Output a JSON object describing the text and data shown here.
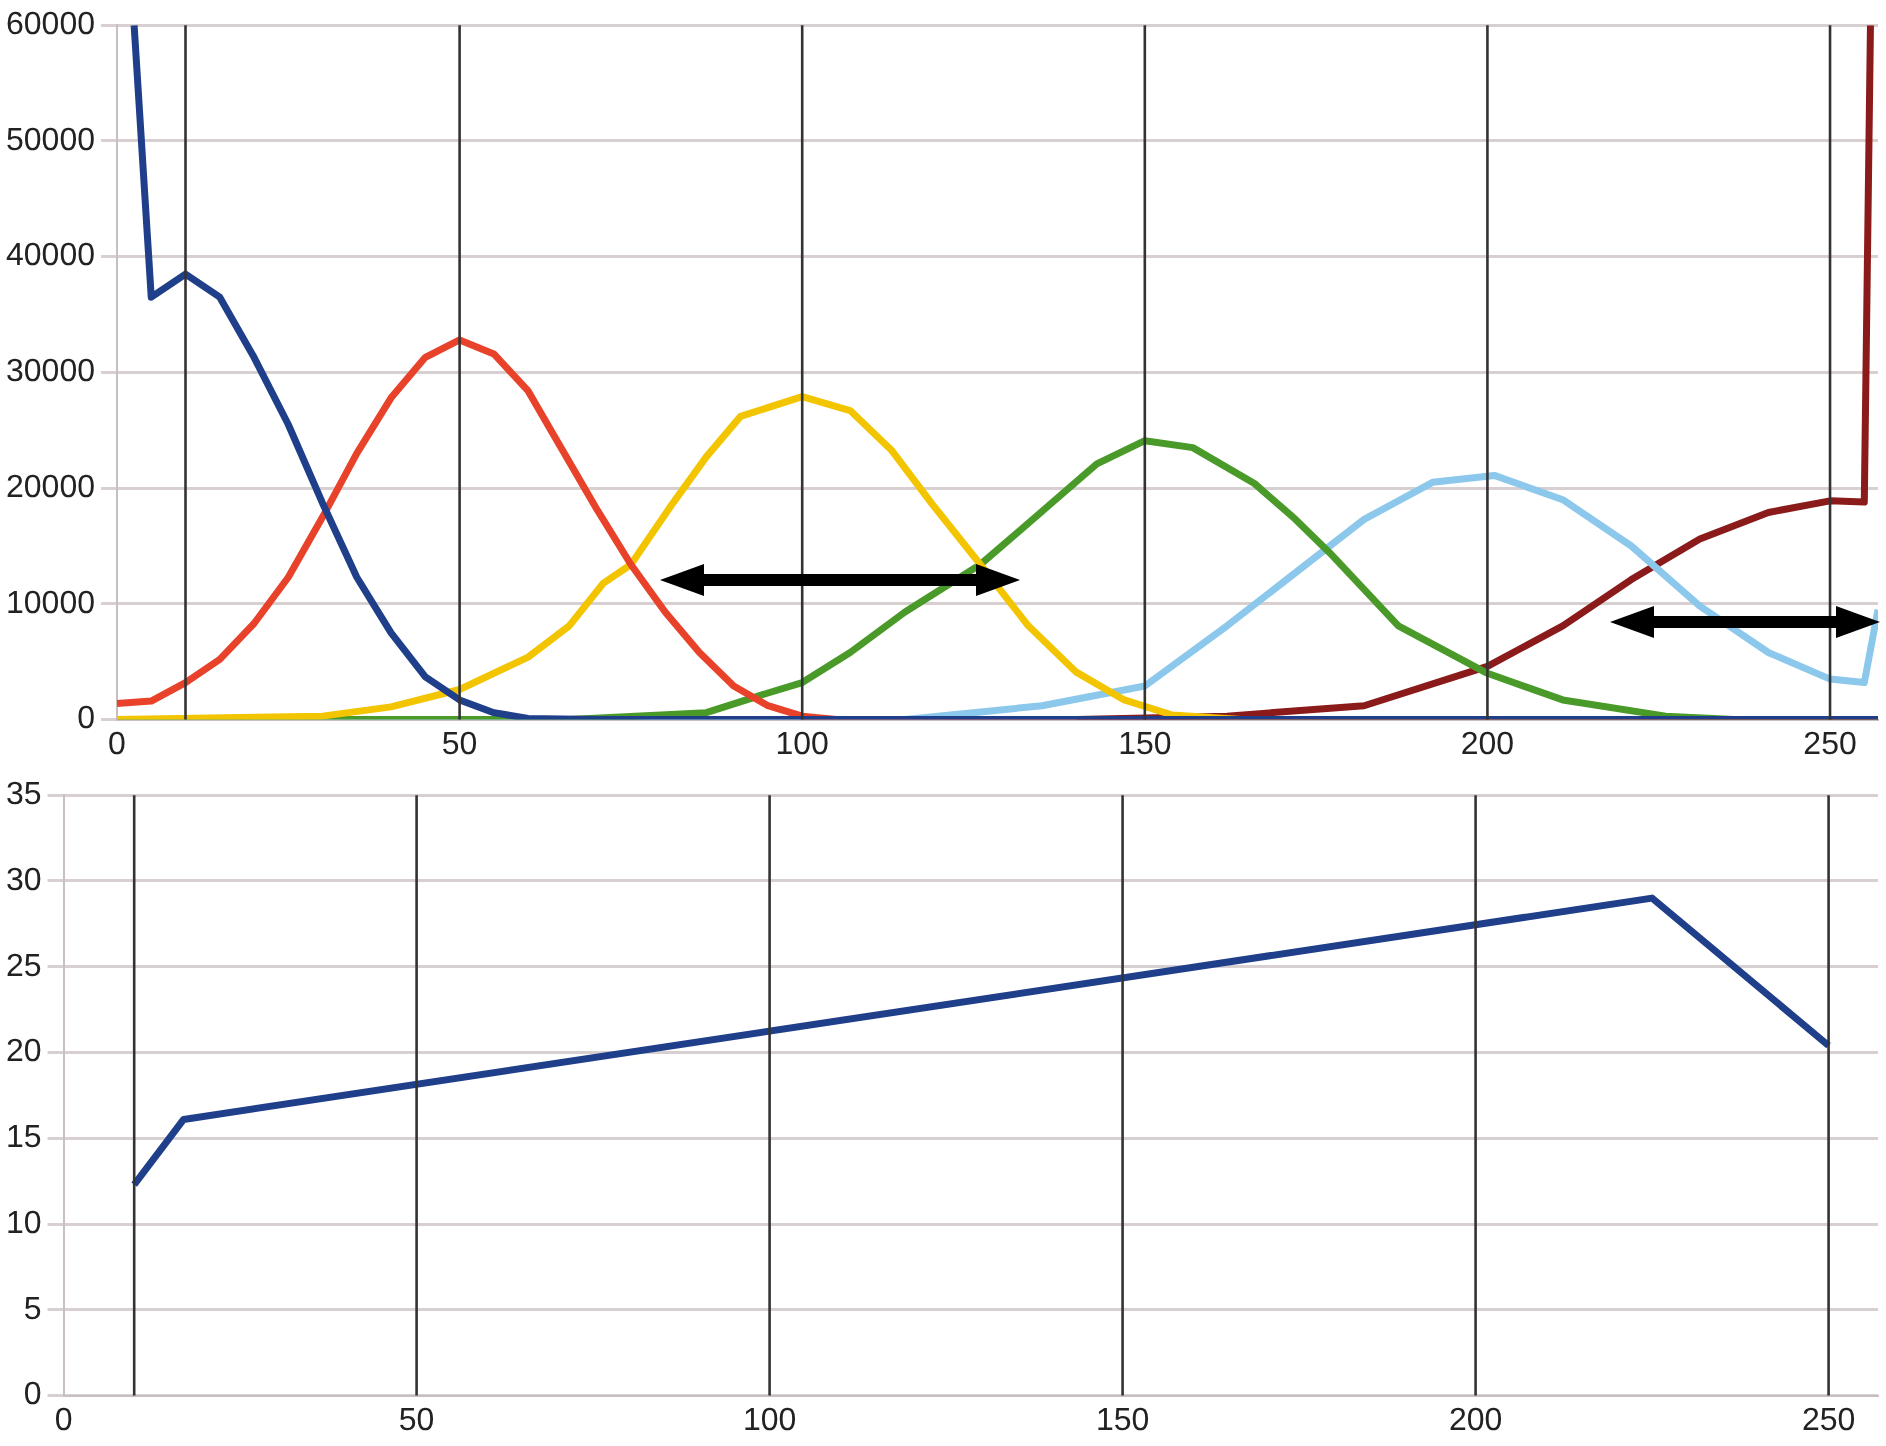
{
  "chart_data": [
    {
      "type": "line",
      "xlim": [
        0,
        257
      ],
      "xticks": [
        0,
        50,
        100,
        150,
        200,
        250
      ],
      "ylim": [
        0,
        60000
      ],
      "yticks": [
        0,
        10000,
        20000,
        30000,
        40000,
        50000,
        60000
      ],
      "grid": "y",
      "marker": "none",
      "series": [
        {
          "color": "#1f3f8a",
          "x": [
            2.5,
            5,
            10,
            15,
            20,
            25,
            30,
            35,
            40,
            45,
            50,
            55,
            60,
            70,
            257
          ],
          "values": [
            60000,
            36500,
            38500,
            36500,
            31300,
            25500,
            18700,
            12300,
            7500,
            3700,
            1700,
            600,
            100,
            0,
            0
          ]
        },
        {
          "color": "#e8432a",
          "x": [
            0,
            5,
            10,
            15,
            20,
            25,
            30,
            35,
            40,
            45,
            50,
            55,
            60,
            65,
            70,
            75,
            80,
            85,
            90,
            95,
            100,
            105,
            257
          ],
          "values": [
            1400,
            1600,
            3200,
            5200,
            8300,
            12300,
            17500,
            23000,
            27800,
            31300,
            32800,
            31600,
            28400,
            23300,
            18200,
            13400,
            9300,
            5800,
            2900,
            1200,
            300,
            0,
            0
          ]
        },
        {
          "color": "#f2c500",
          "x": [
            0,
            30,
            40,
            50,
            60,
            66,
            71,
            75,
            81,
            86,
            91,
            100,
            107,
            113,
            119,
            126,
            133,
            140,
            147,
            154,
            164,
            257
          ],
          "values": [
            0,
            300,
            1100,
            2600,
            5400,
            8100,
            11800,
            13400,
            18600,
            22700,
            26200,
            27900,
            26700,
            23300,
            18600,
            13400,
            8100,
            4100,
            1700,
            400,
            0,
            0
          ]
        },
        {
          "color": "#4a9a2a",
          "x": [
            0,
            40,
            66,
            86,
            95,
            100,
            107,
            115,
            126,
            135,
            143,
            150,
            157,
            166,
            172,
            177,
            187,
            200,
            211,
            226,
            236,
            257
          ],
          "values": [
            0,
            0,
            0,
            600,
            2300,
            3200,
            5800,
            9300,
            13400,
            18000,
            22100,
            24100,
            23500,
            20400,
            17300,
            14400,
            8100,
            4000,
            1700,
            300,
            0,
            0
          ]
        },
        {
          "color": "#8cc8ec",
          "x": [
            0,
            115,
            135,
            150,
            162,
            172,
            182,
            192,
            201,
            211,
            221,
            231,
            241,
            250,
            255,
            257
          ],
          "values": [
            0,
            0,
            1200,
            2900,
            8100,
            12700,
            17300,
            20500,
            21100,
            19000,
            15000,
            9800,
            5800,
            3500,
            3200,
            9500
          ]
        },
        {
          "color": "#8b1a1a",
          "x": [
            140,
            162,
            182,
            200,
            211,
            221,
            231,
            241,
            250,
            255,
            255.9
          ],
          "values": [
            0,
            300,
            1200,
            4600,
            8100,
            12100,
            15600,
            17900,
            18900,
            18800,
            60000
          ]
        }
      ],
      "ref_lines": [
        {
          "axis": "x",
          "value": 10,
          "color": "#333333"
        },
        {
          "axis": "x",
          "value": 50,
          "color": "#333333"
        },
        {
          "axis": "x",
          "value": 100,
          "color": "#333333"
        },
        {
          "axis": "x",
          "value": 150,
          "color": "#333333"
        },
        {
          "axis": "x",
          "value": 200,
          "color": "#333333"
        },
        {
          "axis": "x",
          "value": 250,
          "color": "#333333"
        }
      ]
    },
    {
      "type": "line",
      "xlim": [
        0,
        257
      ],
      "xticks": [
        0,
        50,
        100,
        150,
        200,
        250
      ],
      "ylim": [
        0,
        35
      ],
      "yticks": [
        0,
        5,
        10,
        15,
        20,
        25,
        30,
        35
      ],
      "grid": "y",
      "marker": "none",
      "series": [
        {
          "color": "#1f3f8a",
          "x": [
            10,
            17,
            225,
            250
          ],
          "values": [
            12.3,
            16.1,
            29,
            20.4
          ]
        }
      ],
      "ref_lines": [
        {
          "axis": "x",
          "value": 10,
          "color": "#333333"
        },
        {
          "axis": "x",
          "value": 50,
          "color": "#333333"
        },
        {
          "axis": "x",
          "value": 100,
          "color": "#333333"
        },
        {
          "axis": "x",
          "value": 150,
          "color": "#333333"
        },
        {
          "axis": "x",
          "value": 200,
          "color": "#333333"
        },
        {
          "axis": "x",
          "value": 250,
          "color": "#333333"
        }
      ]
    }
  ]
}
